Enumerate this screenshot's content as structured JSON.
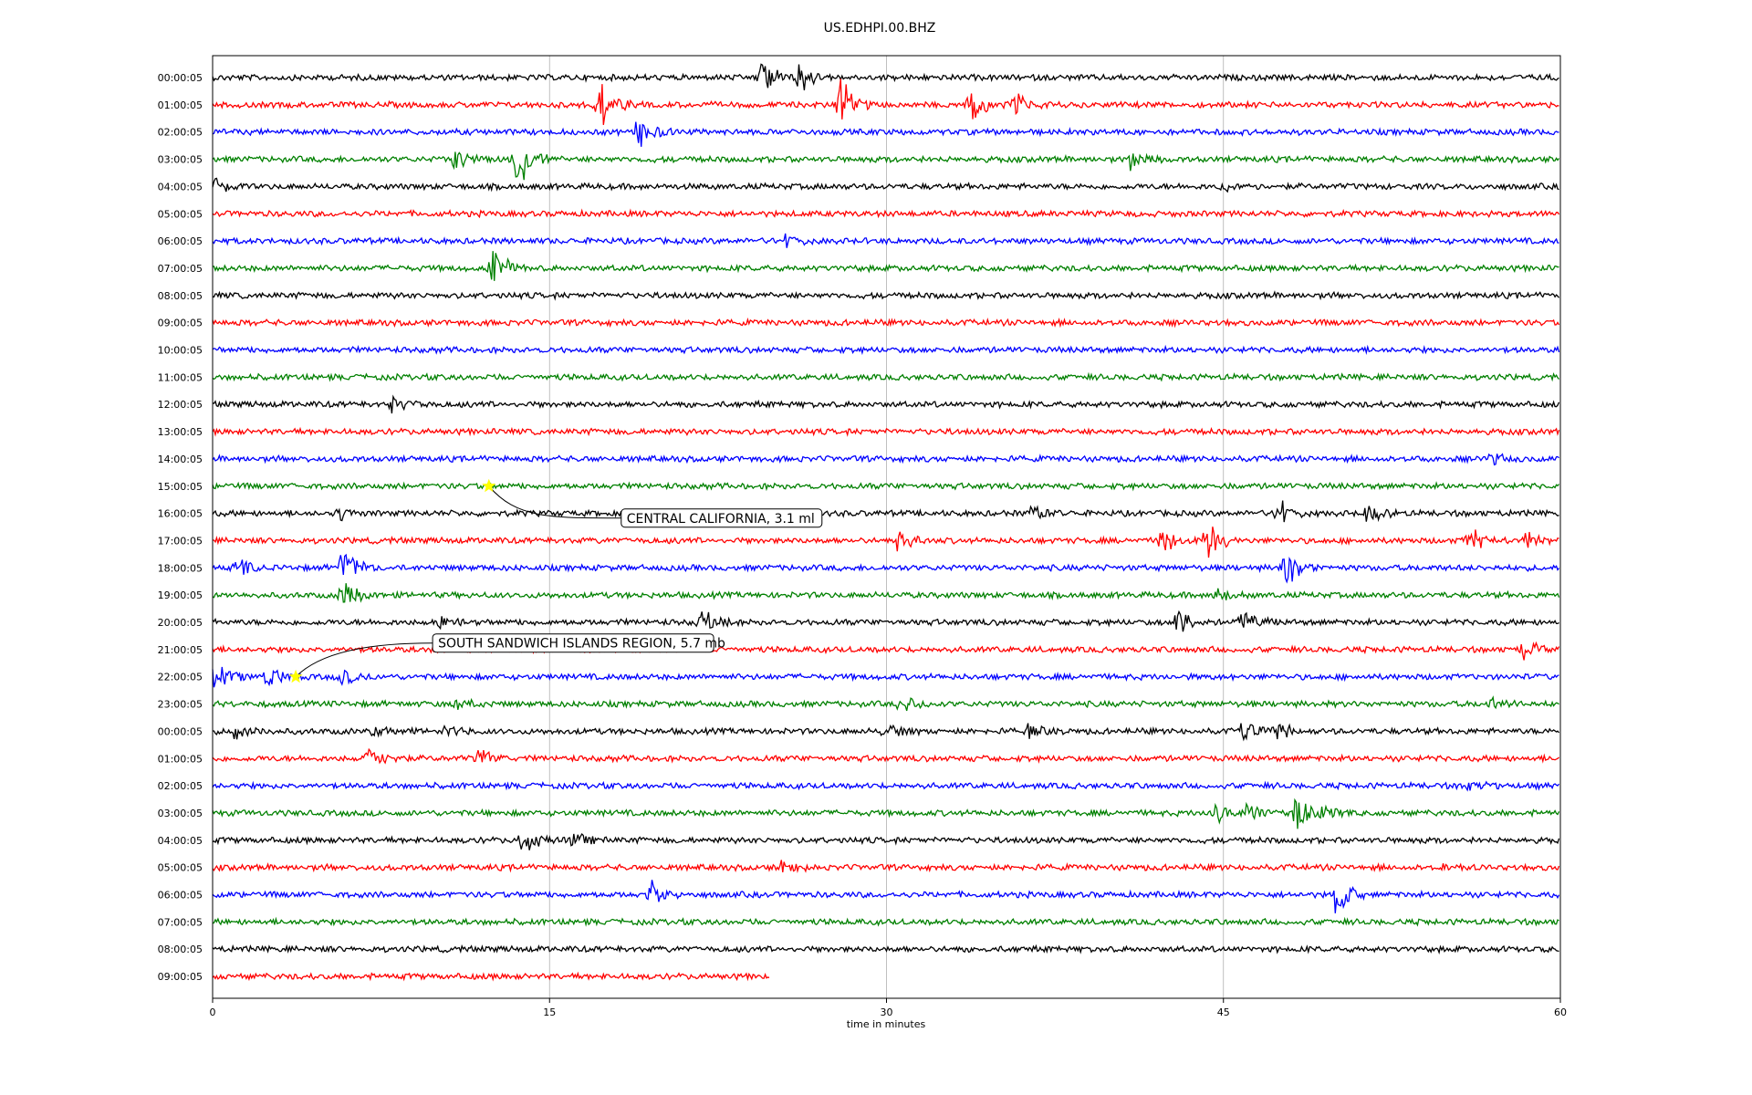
{
  "chart_data": {
    "type": "line",
    "title": "US.EDHPI.00.BHZ",
    "xlabel": "time in minutes",
    "ylabel": "",
    "xlim": [
      0,
      60
    ],
    "xticks": [
      0,
      15,
      30,
      45,
      60
    ],
    "grid_x": true,
    "row_colors": [
      "#000000",
      "#ff0000",
      "#0000ff",
      "#008000"
    ],
    "rows": [
      {
        "label": "00:00:05",
        "events": [
          [
            24.5,
            1.3
          ],
          [
            26.2,
            1.0
          ]
        ]
      },
      {
        "label": "01:00:05",
        "events": [
          [
            17.2,
            1.6
          ],
          [
            28.0,
            1.8
          ],
          [
            33.8,
            1.2
          ],
          [
            35.8,
            0.8
          ]
        ]
      },
      {
        "label": "02:00:05",
        "events": [
          [
            19.0,
            1.2
          ]
        ]
      },
      {
        "label": "03:00:05",
        "events": [
          [
            10.8,
            0.8
          ],
          [
            13.6,
            2.2
          ],
          [
            40.9,
            0.6
          ]
        ]
      },
      {
        "label": "04:00:05",
        "events": [
          [
            0.1,
            0.6
          ],
          [
            45.1,
            0.4
          ]
        ]
      },
      {
        "label": "05:00:05",
        "events": []
      },
      {
        "label": "06:00:05",
        "events": [
          [
            25.6,
            0.5
          ]
        ]
      },
      {
        "label": "07:00:05",
        "events": [
          [
            12.5,
            1.5
          ]
        ]
      },
      {
        "label": "08:00:05",
        "events": []
      },
      {
        "label": "09:00:05",
        "events": []
      },
      {
        "label": "10:00:05",
        "events": []
      },
      {
        "label": "11:00:05",
        "events": []
      },
      {
        "label": "12:00:05",
        "events": [
          [
            8.0,
            0.4
          ]
        ]
      },
      {
        "label": "13:00:05",
        "events": []
      },
      {
        "label": "14:00:05",
        "events": [
          [
            57.0,
            0.3
          ]
        ]
      },
      {
        "label": "15:00:05",
        "events": []
      },
      {
        "label": "16:00:05",
        "events": [
          [
            36.5,
            0.5
          ],
          [
            47.5,
            0.9
          ],
          [
            51.5,
            0.6
          ],
          [
            5.7,
            0.4
          ]
        ]
      },
      {
        "label": "17:00:05",
        "events": [
          [
            30.6,
            0.8
          ],
          [
            42.2,
            1.2
          ],
          [
            44.3,
            1.5
          ],
          [
            56.0,
            0.8
          ],
          [
            58.5,
            0.5
          ]
        ]
      },
      {
        "label": "18:00:05",
        "events": [
          [
            1.1,
            0.7
          ],
          [
            5.8,
            1.6
          ],
          [
            47.8,
            1.2
          ]
        ]
      },
      {
        "label": "19:00:05",
        "events": [
          [
            5.8,
            1.0
          ],
          [
            44.8,
            0.4
          ]
        ]
      },
      {
        "label": "20:00:05",
        "events": [
          [
            10.2,
            0.5
          ],
          [
            21.8,
            0.8
          ],
          [
            43.0,
            1.0
          ],
          [
            45.9,
            1.0
          ]
        ]
      },
      {
        "label": "21:00:05",
        "events": [
          [
            58.4,
            0.6
          ]
        ]
      },
      {
        "label": "22:00:05",
        "events": [
          [
            0.2,
            0.9
          ],
          [
            2.4,
            0.8
          ],
          [
            5.8,
            0.5
          ]
        ]
      },
      {
        "label": "23:00:05",
        "events": [
          [
            10.9,
            0.4
          ],
          [
            30.7,
            0.5
          ],
          [
            57.0,
            0.4
          ]
        ]
      },
      {
        "label": "00:00:05",
        "events": [
          [
            1.0,
            0.4
          ],
          [
            7.3,
            0.4
          ],
          [
            10.3,
            0.4
          ],
          [
            30.0,
            0.5
          ],
          [
            36.4,
            0.4
          ],
          [
            45.8,
            0.7
          ],
          [
            47.4,
            0.6
          ]
        ]
      },
      {
        "label": "01:00:05",
        "events": [
          [
            7.0,
            0.7
          ],
          [
            11.9,
            0.7
          ]
        ]
      },
      {
        "label": "02:00:05",
        "events": [
          [
            55.7,
            0.4
          ]
        ]
      },
      {
        "label": "03:00:05",
        "events": [
          [
            44.7,
            0.6
          ],
          [
            46.1,
            0.8
          ],
          [
            48.3,
            1.2
          ],
          [
            49.5,
            0.4
          ]
        ]
      },
      {
        "label": "04:00:05",
        "events": [
          [
            13.8,
            0.9
          ],
          [
            16.0,
            0.5
          ]
        ]
      },
      {
        "label": "05:00:05",
        "events": [
          [
            25.3,
            0.5
          ],
          [
            54.9,
            0.3
          ]
        ]
      },
      {
        "label": "06:00:05",
        "events": [
          [
            19.5,
            0.8
          ],
          [
            50.0,
            1.6
          ]
        ]
      },
      {
        "label": "07:00:05",
        "events": []
      },
      {
        "label": "08:00:05",
        "events": []
      },
      {
        "label": "09:00:05",
        "events": [],
        "end_minute": 24.8
      }
    ],
    "annotations": [
      {
        "text": "CENTRAL CALIFORNIA, 3.1 ml",
        "row": 15,
        "minute": 12.3,
        "marker_color": "#ffff00"
      },
      {
        "text": "SOUTH SANDWICH ISLANDS REGION, 5.7 mb",
        "row": 22,
        "minute": 3.7,
        "marker_color": "#ffff00"
      }
    ]
  }
}
